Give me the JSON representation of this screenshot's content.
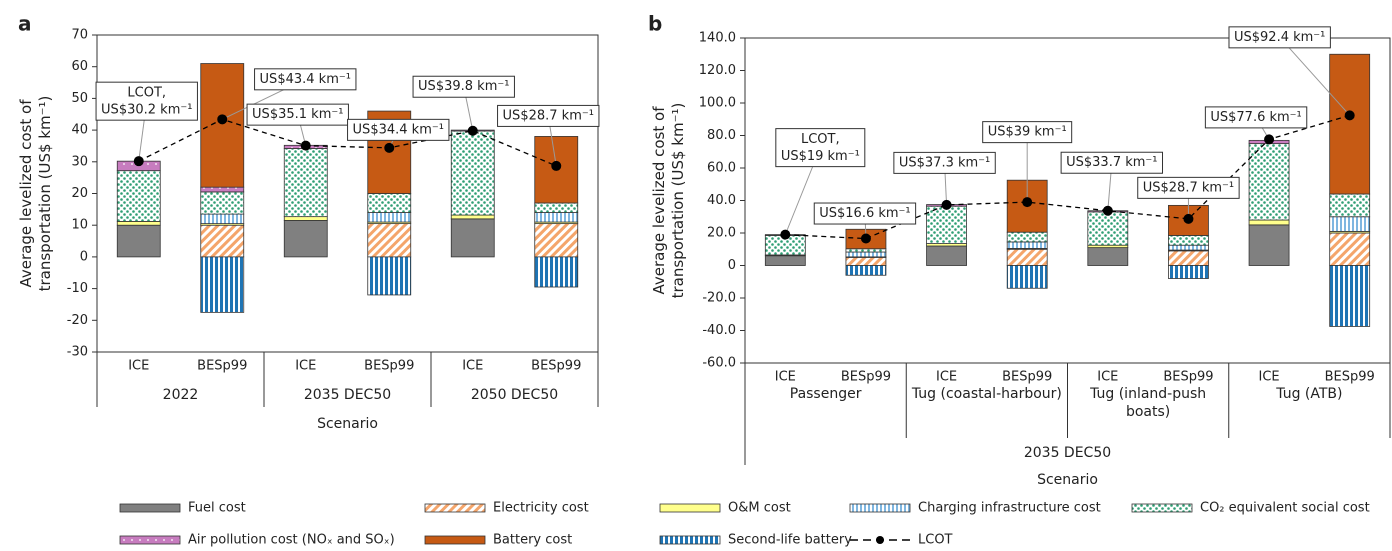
{
  "chart_data": [
    {
      "type": "bar",
      "panel_label": "a",
      "y_label": "Average levelized cost of transportation (US$ km⁻¹)",
      "x_label": "Scenario",
      "categories": [
        "ICE",
        "BESp99",
        "ICE",
        "BESp99",
        "ICE",
        "BESp99"
      ],
      "group_labels": [
        "2022",
        "2035 DEC50",
        "2050 DEC50"
      ],
      "ylim": [
        -30,
        70
      ],
      "yticks": [
        -30,
        -20,
        -10,
        0,
        10,
        20,
        30,
        40,
        50,
        60,
        70
      ],
      "series": [
        {
          "name": "Fuel cost",
          "color": "#808080",
          "pattern": "solid",
          "values": [
            10,
            null,
            11.5,
            null,
            12,
            null
          ]
        },
        {
          "name": "Electricity cost",
          "color": "#f4a56b",
          "pattern": "hatch",
          "values": [
            null,
            10,
            null,
            10.5,
            null,
            10.5
          ]
        },
        {
          "name": "O&M cost",
          "color": "#ffff8c",
          "pattern": "solid",
          "values": [
            1.2,
            0.5,
            1.2,
            0.5,
            1.2,
            0.5
          ]
        },
        {
          "name": "Charging infrastructure cost",
          "color": "#7fb6e0",
          "pattern": "stripes",
          "values": [
            null,
            3,
            null,
            3,
            null,
            3
          ]
        },
        {
          "name": "CO₂ equivalent social cost",
          "color": "#2f9e74",
          "pattern": "dots",
          "values": [
            16,
            7,
            21.5,
            6,
            26.5,
            3
          ]
        },
        {
          "name": "Air pollution cost (NOₓ and SOₓ)",
          "color": "#c77cbf",
          "pattern": "whitedots",
          "values": [
            3,
            1.5,
            1,
            null,
            0.3,
            null
          ]
        },
        {
          "name": "Battery cost",
          "color": "#c65a14",
          "pattern": "solid",
          "values": [
            null,
            39,
            null,
            26,
            null,
            21
          ]
        },
        {
          "name": "Second-life battery",
          "color": "#1f74b4",
          "pattern": "widestripes",
          "values": [
            null,
            -17.5,
            null,
            -12,
            null,
            -9.5
          ]
        }
      ],
      "lcot": {
        "name": "LCOT",
        "color": "#000000",
        "values": [
          30.2,
          43.4,
          35.1,
          34.4,
          39.8,
          28.7
        ],
        "value_labels": [
          "LCOT, US$30.2 km⁻¹",
          "US$43.4 km⁻¹",
          "US$35.1 km⁻¹",
          "US$34.4 km⁻¹",
          "US$39.8 km⁻¹",
          "US$28.7 km⁻¹"
        ]
      }
    },
    {
      "type": "bar",
      "panel_label": "b",
      "y_label": "Average levelized cost of transportation (US$ km⁻¹)",
      "x_label": "Scenario",
      "supergroup_label": "2035 DEC50",
      "categories": [
        "ICE",
        "BESp99",
        "ICE",
        "BESp99",
        "ICE",
        "BESp99",
        "ICE",
        "BESp99"
      ],
      "group_labels": [
        "Passenger",
        "Tug (coastal-harbour)",
        "Tug (inland-push boats)",
        "Tug (ATB)"
      ],
      "ylim": [
        -60,
        140
      ],
      "yticks": [
        {
          "value": -60,
          "label": "-60.0"
        },
        {
          "value": -40,
          "label": "-40.0"
        },
        {
          "value": -20,
          "label": "-20.0"
        },
        0,
        {
          "value": 20,
          "label": "20.0"
        },
        {
          "value": 40,
          "label": "40.0"
        },
        {
          "value": 60,
          "label": "60.0"
        },
        {
          "value": 80,
          "label": "80.0"
        },
        {
          "value": 100,
          "label": "100.0"
        },
        {
          "value": 120,
          "label": "120.0"
        },
        {
          "value": 140,
          "label": "140.0"
        }
      ],
      "series": [
        {
          "name": "Fuel cost",
          "color": "#808080",
          "pattern": "solid",
          "values": [
            6,
            null,
            12,
            null,
            11,
            null,
            25,
            null
          ]
        },
        {
          "name": "Electricity cost",
          "color": "#f4a56b",
          "pattern": "hatch",
          "values": [
            null,
            5,
            null,
            10,
            null,
            9,
            null,
            20
          ]
        },
        {
          "name": "O&M cost",
          "color": "#ffff8c",
          "pattern": "solid",
          "values": [
            0.5,
            0.3,
            1.5,
            0.5,
            1.5,
            0.5,
            3,
            1
          ]
        },
        {
          "name": "Charging infrastructure cost",
          "color": "#7fb6e0",
          "pattern": "stripes",
          "values": [
            null,
            3,
            null,
            4,
            null,
            3,
            null,
            9
          ]
        },
        {
          "name": "CO₂ equivalent social cost",
          "color": "#2f9e74",
          "pattern": "dots",
          "values": [
            12,
            2,
            23,
            6,
            20.5,
            6,
            47,
            14
          ]
        },
        {
          "name": "Air pollution cost (NOₓ and SOₓ)",
          "color": "#c77cbf",
          "pattern": "whitedots",
          "values": [
            0.5,
            null,
            1,
            null,
            0.7,
            null,
            2,
            null
          ]
        },
        {
          "name": "Battery cost",
          "color": "#c65a14",
          "pattern": "solid",
          "values": [
            null,
            12,
            null,
            32,
            null,
            18.5,
            null,
            86
          ]
        },
        {
          "name": "Second-life battery",
          "color": "#1f74b4",
          "pattern": "widestripes",
          "values": [
            null,
            -6,
            null,
            -14,
            null,
            -8,
            null,
            -37.5
          ]
        }
      ],
      "lcot": {
        "name": "LCOT",
        "color": "#000000",
        "values": [
          19,
          16.6,
          37.3,
          39,
          33.7,
          28.7,
          77.6,
          92.4
        ],
        "value_labels": [
          "LCOT, US$19 km⁻¹",
          "US$16.6 km⁻¹",
          "US$37.3 km⁻¹",
          "US$39 km⁻¹",
          "US$33.7 km⁻¹",
          "US$28.7 km⁻¹",
          "US$77.6 km⁻¹",
          "US$92.4 km⁻¹"
        ]
      }
    }
  ]
}
